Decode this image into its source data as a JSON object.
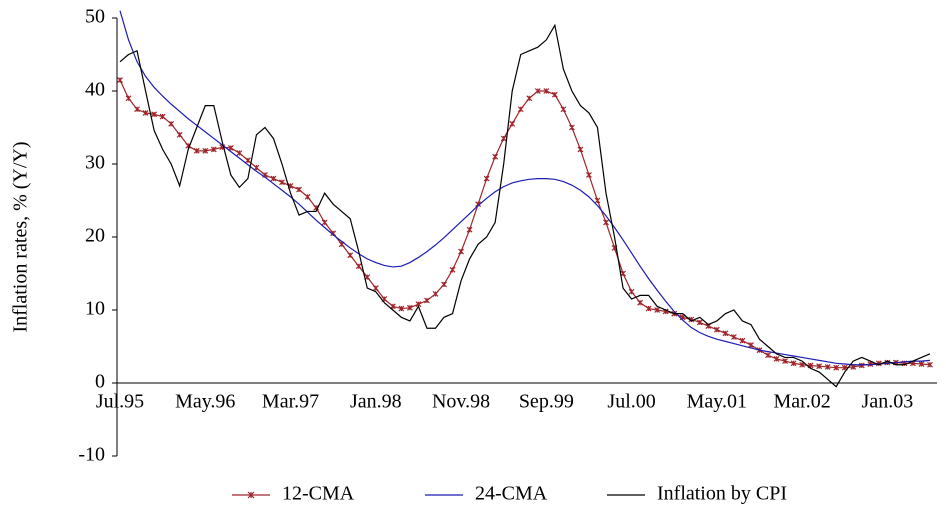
{
  "chart_data": {
    "type": "line",
    "y_label": "Inflation rates, % (Y/Y)",
    "categories": [
      "Jul.95",
      null,
      null,
      null,
      null,
      null,
      null,
      null,
      null,
      null,
      "May.96",
      null,
      null,
      null,
      null,
      null,
      null,
      null,
      null,
      null,
      "Mar.97",
      null,
      null,
      null,
      null,
      null,
      null,
      null,
      null,
      null,
      "Jan.98",
      null,
      null,
      null,
      null,
      null,
      null,
      null,
      null,
      null,
      "Nov.98",
      null,
      null,
      null,
      null,
      null,
      null,
      null,
      null,
      null,
      "Sep.99",
      null,
      null,
      null,
      null,
      null,
      null,
      null,
      null,
      null,
      "Jul.00",
      null,
      null,
      null,
      null,
      null,
      null,
      null,
      null,
      null,
      "May.01",
      null,
      null,
      null,
      null,
      null,
      null,
      null,
      null,
      null,
      "Mar.02",
      null,
      null,
      null,
      null,
      null,
      null,
      null,
      null,
      null,
      "Jan.03",
      null,
      null,
      null,
      null,
      null
    ],
    "ylim": [
      -10,
      50
    ],
    "yticks": [
      -10,
      0,
      10,
      20,
      30,
      40,
      50
    ],
    "legend": "bottom",
    "series": [
      {
        "name": "12-CMA",
        "color": "#a0252a",
        "marker": "star",
        "values": [
          41.5,
          39,
          37.5,
          37,
          36.8,
          36.5,
          35.5,
          34,
          32.5,
          31.8,
          31.8,
          32,
          32.3,
          32.2,
          31.5,
          30.5,
          29.5,
          28.5,
          28,
          27.5,
          27,
          26.5,
          25.5,
          24,
          22,
          20.5,
          19,
          17.5,
          16,
          14.5,
          13,
          11.5,
          10.5,
          10.2,
          10.3,
          10.8,
          11.3,
          12.2,
          13.5,
          15.5,
          18,
          21,
          24.5,
          28,
          31,
          33.5,
          35.5,
          37.5,
          39,
          40,
          40,
          39.5,
          37.5,
          35,
          32,
          28.5,
          25,
          22,
          18.5,
          15,
          12.5,
          11,
          10.2,
          10,
          9.8,
          9.5,
          9,
          8.7,
          8.3,
          7.8,
          7.3,
          6.8,
          6.3,
          5.8,
          5.2,
          4.5,
          3.8,
          3.3,
          3,
          2.7,
          2.5,
          2.4,
          2.3,
          2.2,
          2.1,
          2.1,
          2.2,
          2.4,
          2.6,
          2.7,
          2.8,
          2.8,
          2.7,
          2.7,
          2.6,
          2.5
        ]
      },
      {
        "name": "24-CMA",
        "color": "#1c1cb4",
        "values": [
          51,
          47,
          44,
          42,
          40.5,
          39.3,
          38.2,
          37.2,
          36.2,
          35.3,
          34.4,
          33.5,
          32.6,
          31.7,
          30.8,
          29.9,
          29,
          28.2,
          27.3,
          26.4,
          25.5,
          24.5,
          23.4,
          22.3,
          21.3,
          20.3,
          19.4,
          18.5,
          17.7,
          17,
          16.5,
          16.1,
          15.9,
          16,
          16.5,
          17.2,
          18,
          18.9,
          19.9,
          21,
          22.1,
          23.2,
          24.3,
          25.3,
          26.2,
          26.9,
          27.4,
          27.7,
          27.9,
          28,
          28,
          27.9,
          27.6,
          27.1,
          26.4,
          25.5,
          24.3,
          22.9,
          21.3,
          19.6,
          17.8,
          16,
          14.3,
          12.7,
          11.2,
          9.8,
          8.6,
          7.6,
          6.9,
          6.4,
          6,
          5.7,
          5.4,
          5.1,
          4.8,
          4.5,
          4.3,
          4.1,
          3.9,
          3.7,
          3.5,
          3.3,
          3.1,
          2.9,
          2.7,
          2.6,
          2.5,
          2.5,
          2.5,
          2.6,
          2.7,
          2.8,
          2.9,
          3,
          3,
          3.1
        ]
      },
      {
        "name": "Inflation by CPI",
        "color": "#000000",
        "values": [
          44,
          45,
          45.5,
          40,
          34.6,
          32,
          30,
          27,
          32,
          35,
          38,
          38,
          33,
          28.5,
          26.8,
          28,
          34,
          35,
          33.5,
          30,
          26,
          23,
          23.5,
          23.5,
          26,
          24.5,
          23.5,
          22.5,
          18,
          13,
          12.5,
          11,
          10,
          9,
          8.5,
          10.5,
          7.5,
          7.5,
          9,
          9.5,
          14,
          17,
          19,
          20,
          22,
          30,
          40,
          45,
          45.5,
          46,
          47,
          49,
          43,
          40,
          38,
          37,
          35,
          26,
          20,
          13,
          11.5,
          12,
          12,
          10.5,
          10,
          9.5,
          9.5,
          8.5,
          9,
          8,
          8.5,
          9.5,
          10,
          8.5,
          8,
          6,
          5,
          4,
          3.5,
          3.5,
          3,
          2,
          1.5,
          0.5,
          -0.5,
          1.5,
          3,
          3.5,
          3,
          2.5,
          3,
          2.5,
          2.5,
          3,
          3.5,
          4
        ]
      }
    ]
  }
}
